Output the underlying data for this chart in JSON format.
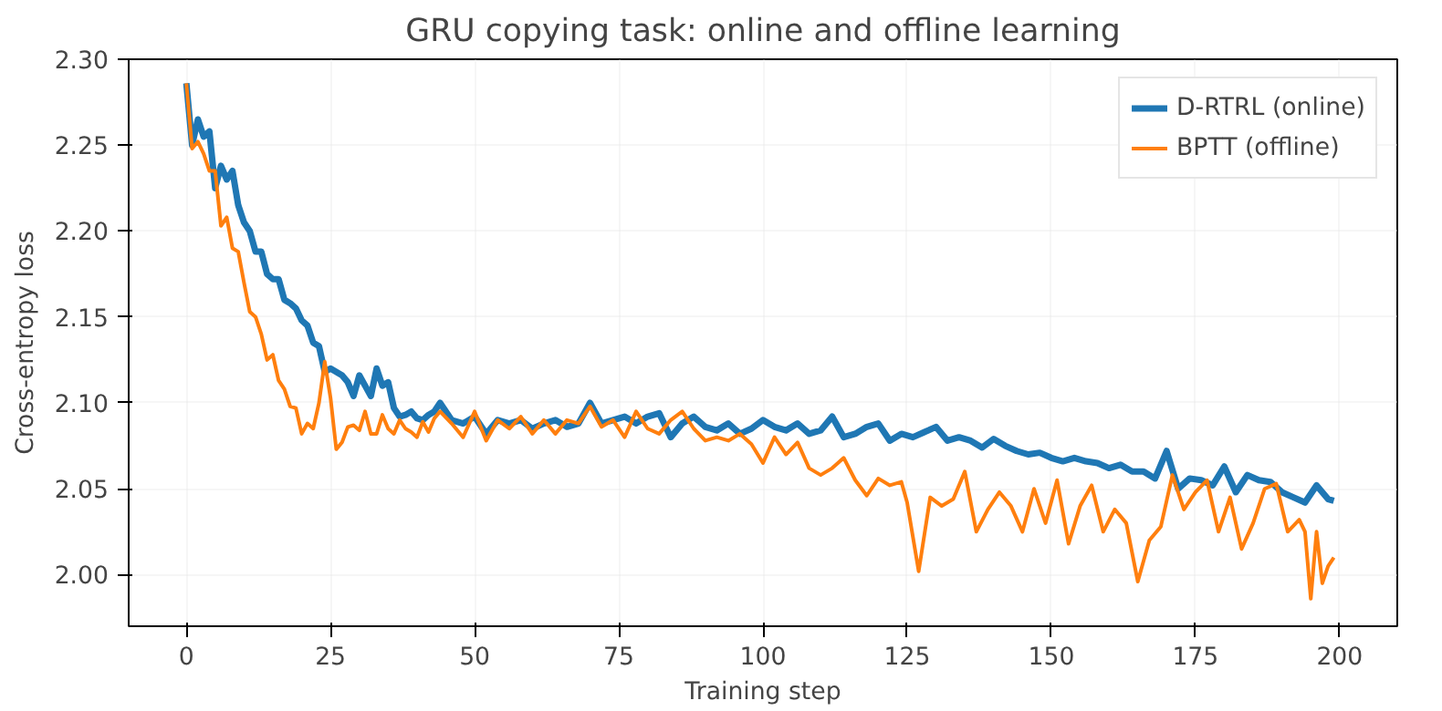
{
  "chart_data": {
    "type": "line",
    "title": "GRU copying task: online and offline learning",
    "xlabel": "Training step",
    "ylabel": "Cross-entropy loss",
    "xlim": [
      -10,
      210
    ],
    "ylim": [
      1.97,
      2.3
    ],
    "xticks": [
      0,
      25,
      50,
      75,
      100,
      125,
      150,
      175,
      200
    ],
    "yticks": [
      {
        "value": 2.0,
        "label": "2.00"
      },
      {
        "value": 2.05,
        "label": "2.05"
      },
      {
        "value": 2.1,
        "label": "2.10"
      },
      {
        "value": 2.15,
        "label": "2.15"
      },
      {
        "value": 2.2,
        "label": "2.20"
      },
      {
        "value": 2.25,
        "label": "2.25"
      },
      {
        "value": 2.3,
        "label": "2.30"
      }
    ],
    "grid": true,
    "legend": "top right",
    "marker": "none",
    "line_style": "solid",
    "series": [
      {
        "name": "D-RTRL (online)",
        "color": "#1f77b4",
        "x": [
          0,
          1,
          2,
          3,
          4,
          5,
          6,
          7,
          8,
          9,
          10,
          11,
          12,
          13,
          14,
          15,
          16,
          17,
          18,
          19,
          20,
          21,
          22,
          23,
          24,
          25,
          26,
          27,
          28,
          29,
          30,
          31,
          32,
          33,
          34,
          35,
          36,
          37,
          38,
          39,
          40,
          41,
          42,
          43,
          44,
          46,
          48,
          50,
          52,
          54,
          56,
          58,
          60,
          62,
          64,
          66,
          68,
          70,
          72,
          74,
          76,
          78,
          80,
          82,
          84,
          86,
          88,
          90,
          92,
          94,
          96,
          98,
          100,
          102,
          104,
          106,
          108,
          110,
          112,
          114,
          116,
          118,
          120,
          122,
          124,
          126,
          128,
          130,
          132,
          134,
          136,
          138,
          140,
          142,
          144,
          146,
          148,
          150,
          152,
          154,
          156,
          158,
          160,
          162,
          164,
          166,
          168,
          170,
          172,
          174,
          176,
          178,
          180,
          182,
          184,
          186,
          188,
          190,
          192,
          194,
          196,
          198,
          199
        ],
        "values": [
          2.286,
          2.25,
          2.265,
          2.255,
          2.258,
          2.225,
          2.238,
          2.23,
          2.235,
          2.215,
          2.205,
          2.2,
          2.188,
          2.188,
          2.175,
          2.172,
          2.172,
          2.16,
          2.158,
          2.155,
          2.148,
          2.145,
          2.135,
          2.133,
          2.118,
          2.12,
          2.118,
          2.116,
          2.112,
          2.104,
          2.116,
          2.11,
          2.104,
          2.12,
          2.11,
          2.112,
          2.097,
          2.092,
          2.093,
          2.095,
          2.091,
          2.09,
          2.093,
          2.095,
          2.1,
          2.09,
          2.088,
          2.092,
          2.082,
          2.09,
          2.088,
          2.09,
          2.085,
          2.088,
          2.09,
          2.086,
          2.088,
          2.1,
          2.088,
          2.09,
          2.092,
          2.088,
          2.092,
          2.094,
          2.08,
          2.088,
          2.092,
          2.086,
          2.084,
          2.088,
          2.082,
          2.085,
          2.09,
          2.086,
          2.084,
          2.088,
          2.082,
          2.084,
          2.092,
          2.08,
          2.082,
          2.086,
          2.088,
          2.078,
          2.082,
          2.08,
          2.083,
          2.086,
          2.078,
          2.08,
          2.078,
          2.074,
          2.079,
          2.075,
          2.072,
          2.07,
          2.071,
          2.068,
          2.066,
          2.068,
          2.066,
          2.065,
          2.062,
          2.064,
          2.06,
          2.06,
          2.056,
          2.072,
          2.05,
          2.056,
          2.055,
          2.052,
          2.063,
          2.048,
          2.058,
          2.055,
          2.054,
          2.048,
          2.045,
          2.042,
          2.052,
          2.044,
          2.043
        ]
      },
      {
        "name": "BPTT (offline)",
        "color": "#ff7f0e",
        "x": [
          0,
          1,
          2,
          3,
          4,
          5,
          6,
          7,
          8,
          9,
          10,
          11,
          12,
          13,
          14,
          15,
          16,
          17,
          18,
          19,
          20,
          21,
          22,
          23,
          24,
          25,
          26,
          27,
          28,
          29,
          30,
          31,
          32,
          33,
          34,
          35,
          36,
          37,
          38,
          39,
          40,
          41,
          42,
          43,
          44,
          46,
          48,
          50,
          52,
          54,
          56,
          58,
          60,
          62,
          64,
          66,
          68,
          70,
          72,
          74,
          76,
          78,
          80,
          82,
          84,
          86,
          88,
          90,
          92,
          94,
          96,
          98,
          100,
          102,
          104,
          106,
          108,
          110,
          112,
          114,
          116,
          118,
          120,
          122,
          124,
          125,
          127,
          129,
          131,
          133,
          135,
          137,
          139,
          141,
          143,
          145,
          147,
          149,
          151,
          153,
          155,
          157,
          159,
          161,
          163,
          165,
          167,
          169,
          171,
          173,
          175,
          177,
          179,
          181,
          183,
          185,
          187,
          189,
          191,
          193,
          194,
          195,
          196,
          197,
          198,
          199
        ],
        "values": [
          2.286,
          2.248,
          2.252,
          2.245,
          2.235,
          2.235,
          2.203,
          2.208,
          2.19,
          2.188,
          2.17,
          2.153,
          2.15,
          2.14,
          2.125,
          2.128,
          2.113,
          2.108,
          2.098,
          2.097,
          2.082,
          2.088,
          2.085,
          2.1,
          2.124,
          2.103,
          2.073,
          2.077,
          2.086,
          2.087,
          2.084,
          2.095,
          2.082,
          2.082,
          2.093,
          2.085,
          2.082,
          2.09,
          2.085,
          2.083,
          2.08,
          2.089,
          2.083,
          2.091,
          2.095,
          2.088,
          2.08,
          2.095,
          2.078,
          2.09,
          2.085,
          2.092,
          2.082,
          2.09,
          2.082,
          2.09,
          2.088,
          2.098,
          2.086,
          2.09,
          2.08,
          2.095,
          2.085,
          2.082,
          2.09,
          2.095,
          2.085,
          2.078,
          2.08,
          2.078,
          2.082,
          2.076,
          2.065,
          2.08,
          2.07,
          2.077,
          2.062,
          2.058,
          2.062,
          2.068,
          2.055,
          2.046,
          2.056,
          2.052,
          2.054,
          2.042,
          2.002,
          2.045,
          2.04,
          2.044,
          2.06,
          2.025,
          2.038,
          2.048,
          2.04,
          2.025,
          2.05,
          2.03,
          2.055,
          2.018,
          2.04,
          2.052,
          2.025,
          2.038,
          2.03,
          1.996,
          2.02,
          2.028,
          2.058,
          2.038,
          2.048,
          2.055,
          2.025,
          2.045,
          2.015,
          2.03,
          2.05,
          2.053,
          2.025,
          2.032,
          2.025,
          1.986,
          2.025,
          1.995,
          2.005,
          2.01
        ]
      }
    ]
  }
}
